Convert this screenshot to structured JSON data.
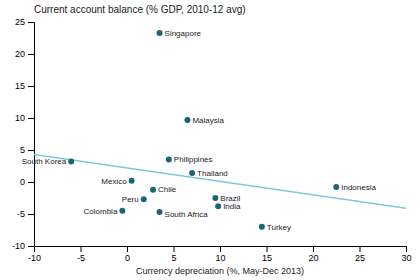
{
  "chart_data": {
    "type": "scatter",
    "title": "Current account balance (% GDP, 2010-12 avg)",
    "x_label": "Currency depreciation (%, May-Dec 2013)",
    "series": [
      {
        "type": "scatter",
        "color": "#1a6678",
        "labels": [
          "Singapore",
          "Malaysia",
          "Philippines",
          "Thailand",
          "South Korea",
          "Indonesia",
          "Mexico",
          "Chile",
          "Peru",
          "Colombia",
          "South Africa",
          "Brazil",
          "India",
          "Turkey"
        ],
        "x": [
          3.5,
          6.5,
          4.5,
          7.0,
          -6.0,
          22.5,
          0.5,
          2.8,
          1.8,
          -0.5,
          3.5,
          9.5,
          9.8,
          14.5
        ],
        "values": [
          23.3,
          9.7,
          3.5,
          1.4,
          3.2,
          -0.8,
          0.2,
          -1.2,
          -2.7,
          -4.5,
          -4.7,
          -2.5,
          -3.8,
          -7.0
        ]
      },
      {
        "type": "line",
        "color": "#7ec8d8",
        "x": [
          -10,
          30
        ],
        "values": [
          4.3045,
          -4.0926
        ]
      }
    ],
    "xlim": [
      -10,
      30
    ],
    "ylim": [
      -10,
      25
    ],
    "xticks": [
      -10,
      -5,
      0,
      5,
      10,
      15,
      20,
      25,
      30
    ],
    "yticks": [
      -10,
      -5,
      0,
      5,
      10,
      15,
      20,
      25
    ],
    "grid": false
  }
}
